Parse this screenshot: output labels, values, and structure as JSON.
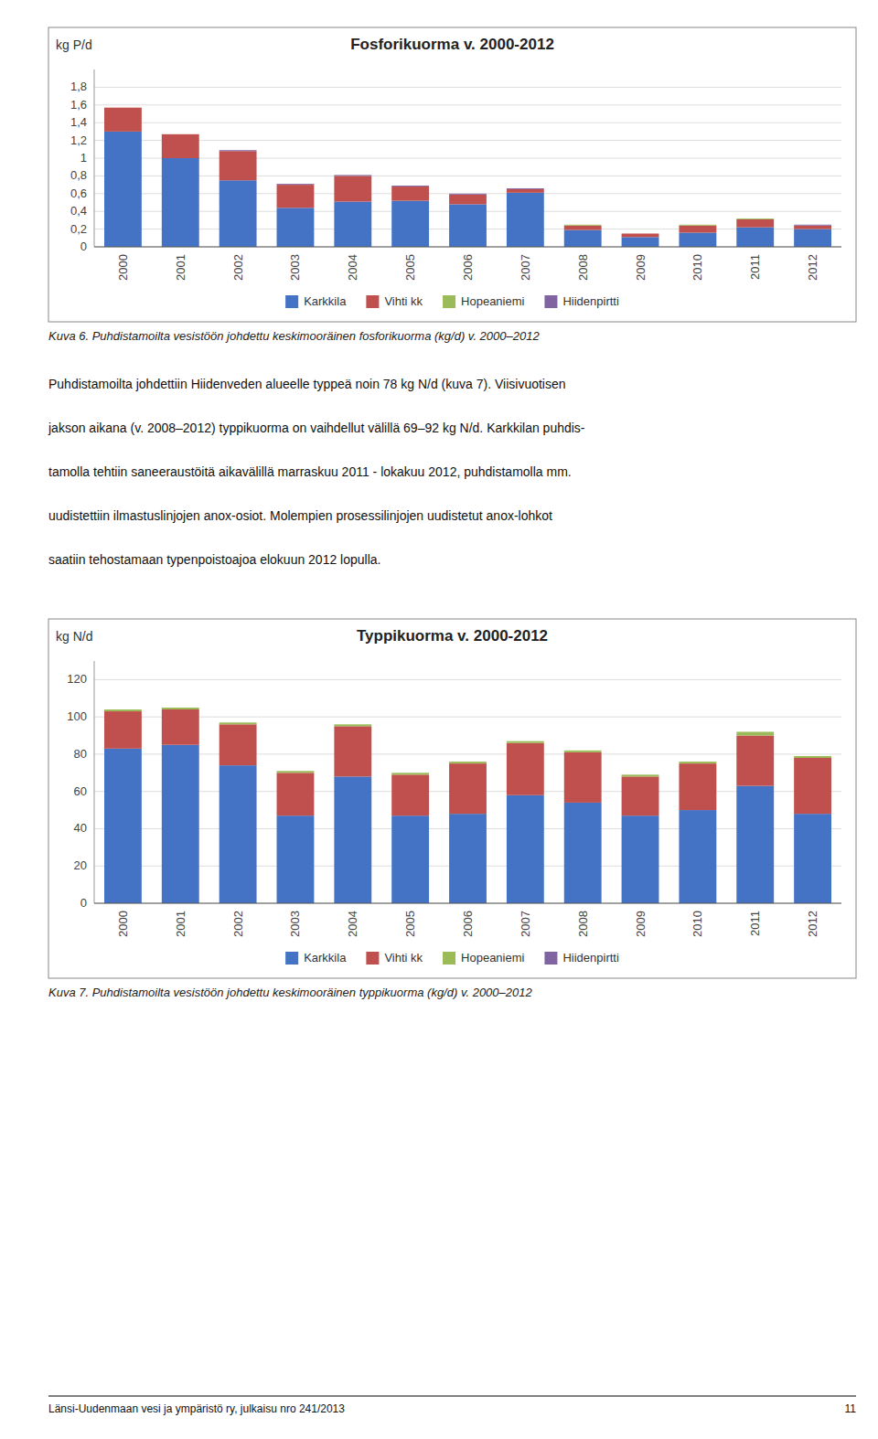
{
  "chart_data": [
    {
      "type": "bar",
      "stacked": true,
      "grid": true,
      "legend": "bottom",
      "title": "Fosforikuorma v. 2000-2012",
      "y_label": "kg P/d",
      "caption": "Kuva 6.  Puhdistamoilta vesistöön johdettu keskimooräinen fosforikuorma (kg/d) v. 2000–2012",
      "categories": [
        "2000",
        "2001",
        "2002",
        "2003",
        "2004",
        "2005",
        "2006",
        "2007",
        "2008",
        "2009",
        "2010",
        "2011",
        "2012"
      ],
      "ylim": [
        0,
        2.0
      ],
      "yticks": [
        0,
        {
          "value": 0.2,
          "label": "0,2"
        },
        {
          "value": 0.4,
          "label": "0,4"
        },
        {
          "value": 0.6,
          "label": "0,6"
        },
        {
          "value": 0.8,
          "label": "0,8"
        },
        1,
        {
          "value": 1.2,
          "label": "1,2"
        },
        {
          "value": 1.4,
          "label": "1,4"
        },
        {
          "value": 1.6,
          "label": "1,6"
        },
        {
          "value": 1.8,
          "label": "1,8"
        }
      ],
      "series": [
        {
          "name": "Karkkila",
          "color": "#4472C4",
          "values": [
            1.3,
            1.0,
            0.75,
            0.44,
            0.51,
            0.52,
            0.48,
            0.61,
            0.19,
            0.11,
            0.16,
            0.22,
            0.2
          ]
        },
        {
          "name": "Vihti kk",
          "color": "#C0504D",
          "values": [
            0.27,
            0.27,
            0.33,
            0.26,
            0.29,
            0.16,
            0.11,
            0.04,
            0.05,
            0.04,
            0.08,
            0.09,
            0.04
          ]
        },
        {
          "name": "Hopeaniemi",
          "color": "#9BBB59",
          "values": [
            0.0,
            0.0,
            0.0,
            0.0,
            0.0,
            0.0,
            0.0,
            0.0,
            0.01,
            0.0,
            0.01,
            0.01,
            0.0
          ]
        },
        {
          "name": "Hiidenpirtti",
          "color": "#8064A2",
          "values": [
            0.0,
            0.0,
            0.01,
            0.01,
            0.01,
            0.01,
            0.01,
            0.01,
            0.0,
            0.0,
            0.0,
            0.0,
            0.01
          ]
        }
      ]
    },
    {
      "type": "bar",
      "stacked": true,
      "grid": true,
      "legend": "bottom",
      "title": "Typpikuorma v. 2000-2012",
      "y_label": "kg N/d",
      "caption": "Kuva 7.  Puhdistamoilta vesistöön johdettu keskimooräinen typpikuorma (kg/d) v. 2000–2012",
      "categories": [
        "2000",
        "2001",
        "2002",
        "2003",
        "2004",
        "2005",
        "2006",
        "2007",
        "2008",
        "2009",
        "2010",
        "2011",
        "2012"
      ],
      "ylim": [
        0,
        130
      ],
      "yticks": [
        0,
        20,
        40,
        60,
        80,
        100,
        120
      ],
      "series": [
        {
          "name": "Karkkila",
          "color": "#4472C4",
          "values": [
            83,
            85,
            74,
            47,
            68,
            47,
            48,
            58,
            54,
            47,
            50,
            63,
            48
          ]
        },
        {
          "name": "Vihti kk",
          "color": "#C0504D",
          "values": [
            20,
            19,
            22,
            23,
            27,
            22,
            27,
            28,
            27,
            21,
            25,
            27,
            30
          ]
        },
        {
          "name": "Hopeaniemi",
          "color": "#9BBB59",
          "values": [
            1,
            1,
            1,
            1,
            1,
            1,
            1,
            1,
            1,
            1,
            1,
            2,
            1
          ]
        },
        {
          "name": "Hiidenpirtti",
          "color": "#8064A2",
          "values": [
            0,
            0,
            0,
            0,
            0,
            0,
            0,
            0,
            0,
            0,
            0,
            0,
            0
          ]
        }
      ]
    }
  ],
  "body_text": [
    "Puhdistamoilta johdettiin Hiidenveden alueelle typpeä noin 78 kg N/d (kuva 7).  Viisivuotisen",
    "jakson aikana (v. 2008–2012) typpikuorma on vaihdellut välillä 69–92 kg N/d. Karkkilan puhdis-",
    "tamolla tehtiin saneeraustöitä aikavälillä marraskuu 2011 - lokakuu 2012, puhdistamolla mm.",
    "uudistettiin ilmastuslinjojen anox-osiot.  Molempien prosessilinjojen uudistetut anox-lohkot",
    "saatiin tehostamaan typenpoistoajoa elokuun 2012 lopulla."
  ],
  "footer_left": "Länsi-Uudenmaan vesi ja ympäristö ry, julkaisu nro 241/2013",
  "footer_right": "11"
}
